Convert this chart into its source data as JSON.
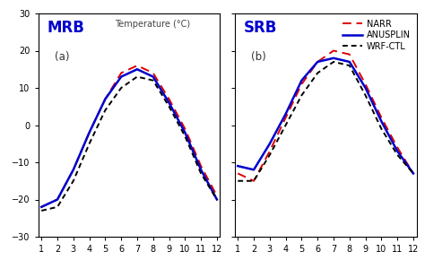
{
  "months": [
    1,
    2,
    3,
    4,
    5,
    6,
    7,
    8,
    9,
    10,
    11,
    12
  ],
  "MRB": {
    "NARR": [
      -22,
      -20,
      -12,
      -2,
      7,
      14,
      16,
      14,
      7,
      -1,
      -11,
      -19
    ],
    "ANUSPLIN": [
      -22,
      -20,
      -12,
      -2,
      7,
      13,
      15,
      13,
      6,
      -2,
      -12,
      -20
    ],
    "WRF_CTL": [
      -23,
      -22,
      -15,
      -5,
      4,
      10,
      13,
      12,
      5,
      -3,
      -13,
      -20
    ]
  },
  "SRB": {
    "NARR": [
      -13,
      -15,
      -7,
      2,
      11,
      17,
      20,
      19,
      11,
      2,
      -6,
      -13
    ],
    "ANUSPLIN": [
      -11,
      -12,
      -5,
      3,
      12,
      17,
      18,
      17,
      10,
      1,
      -7,
      -13
    ],
    "WRF_CTL": [
      -15,
      -15,
      -8,
      0,
      8,
      14,
      17,
      16,
      8,
      -1,
      -8,
      -13
    ]
  },
  "colors": {
    "NARR": "#dd0000",
    "ANUSPLIN": "#0000cc",
    "WRF_CTL": "#000000"
  },
  "linestyles": {
    "NARR": "--",
    "ANUSPLIN": "-",
    "WRF_CTL": "--"
  },
  "linewidths": {
    "NARR": 1.4,
    "ANUSPLIN": 1.8,
    "WRF_CTL": 1.4
  },
  "dashes": {
    "NARR": [
      5,
      3
    ],
    "ANUSPLIN": [],
    "WRF_CTL": [
      3,
      2
    ]
  },
  "ylim": [
    -30,
    30
  ],
  "yticks": [
    -30,
    -20,
    -10,
    0,
    10,
    20,
    30
  ],
  "xticks": [
    1,
    2,
    3,
    4,
    5,
    6,
    7,
    8,
    9,
    10,
    11,
    12
  ],
  "title_a": "MRB",
  "title_b": "SRB",
  "label_a": "(a)",
  "label_b": "(b)",
  "temp_label": "Temperature (°C)",
  "legend_labels": [
    "NARR",
    "ANUSPLIN",
    "WRF-CTL"
  ],
  "legend_keys": [
    "NARR",
    "ANUSPLIN",
    "WRF_CTL"
  ],
  "bg_color": "#ffffff"
}
